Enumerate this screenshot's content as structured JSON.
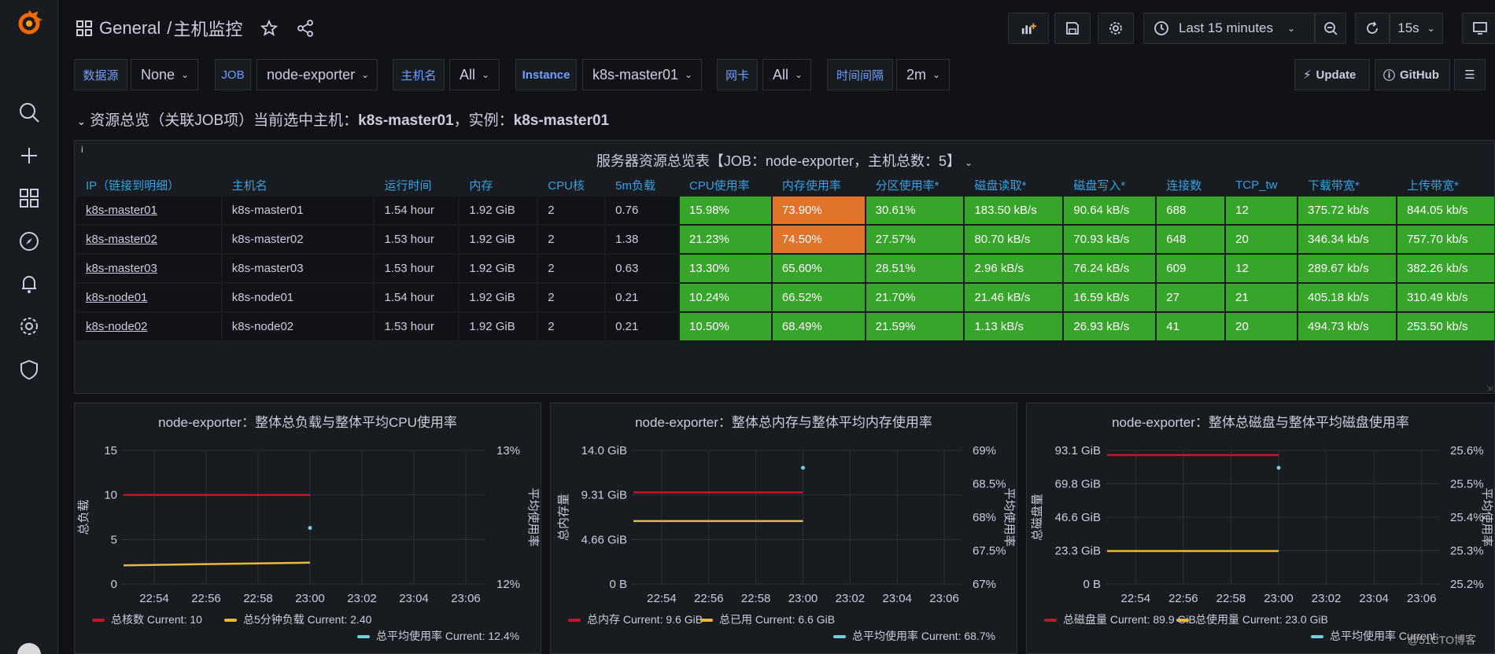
{
  "header": {
    "folder": "General",
    "separator": "/",
    "dashboard": "主机监控"
  },
  "time": {
    "range": "Last 15 minutes",
    "refresh": "15s"
  },
  "vars": [
    {
      "label": "数据源",
      "value": "None"
    },
    {
      "label": "JOB",
      "value": "node-exporter"
    },
    {
      "label": "主机名",
      "value": "All"
    },
    {
      "label": "Instance",
      "value": "k8s-master01"
    },
    {
      "label": "网卡",
      "value": "All"
    },
    {
      "label": "时间间隔",
      "value": "2m"
    }
  ],
  "links": {
    "update": "Update",
    "github": "GitHub"
  },
  "row": {
    "title": "资源总览（关联JOB项）当前选中主机：",
    "host": "k8s-master01",
    "sep": "，实例：",
    "instance": "k8s-master01"
  },
  "table": {
    "title": "服务器资源总览表【JOB：node-exporter，主机总数：5】",
    "info": "i",
    "headers": [
      "IP（链接到明细）",
      "主机名",
      "运行时间",
      "内存",
      "CPU核",
      "5m负载",
      "CPU使用率",
      "内存使用率",
      "分区使用率*",
      "磁盘读取*",
      "磁盘写入*",
      "连接数",
      "TCP_tw",
      "下载带宽*",
      "上传带宽*"
    ],
    "rows": [
      [
        "k8s-master01",
        "k8s-master01",
        "1.54 hour",
        "1.92 GiB",
        "2",
        "0.76",
        "15.98%",
        "73.90%",
        "30.61%",
        "183.50 kB/s",
        "90.64 kB/s",
        "688",
        "12",
        "375.72 kb/s",
        "844.05 kb/s"
      ],
      [
        "k8s-master02",
        "k8s-master02",
        "1.53 hour",
        "1.92 GiB",
        "2",
        "1.38",
        "21.23%",
        "74.50%",
        "27.57%",
        "80.70 kB/s",
        "70.93 kB/s",
        "648",
        "20",
        "346.34 kb/s",
        "757.70 kb/s"
      ],
      [
        "k8s-master03",
        "k8s-master03",
        "1.53 hour",
        "1.92 GiB",
        "2",
        "0.63",
        "13.30%",
        "65.60%",
        "28.51%",
        "2.96 kB/s",
        "76.24 kB/s",
        "609",
        "12",
        "289.67 kb/s",
        "382.26 kb/s"
      ],
      [
        "k8s-node01",
        "k8s-node01",
        "1.54 hour",
        "1.92 GiB",
        "2",
        "0.21",
        "10.24%",
        "66.52%",
        "21.70%",
        "21.46 kB/s",
        "16.59 kB/s",
        "27",
        "21",
        "405.18 kb/s",
        "310.49 kb/s"
      ],
      [
        "k8s-node02",
        "k8s-node02",
        "1.53 hour",
        "1.92 GiB",
        "2",
        "0.21",
        "10.50%",
        "68.49%",
        "21.59%",
        "1.13 kB/s",
        "26.93 kB/s",
        "41",
        "20",
        "494.73 kb/s",
        "253.50 kb/s"
      ]
    ],
    "cell_colors": {
      "green": "#37a52a",
      "orange": "#e0742b"
    },
    "orange_cells": [
      [
        0,
        7
      ],
      [
        1,
        7
      ]
    ]
  },
  "chart_data": [
    {
      "type": "line",
      "title_prefix": "node-exporter：",
      "title": "整体总负载与整体平均CPU使用率",
      "ylabel": "总负载",
      "y2label": "平均使用率",
      "x": [
        "22:54",
        "22:56",
        "22:58",
        "23:00",
        "23:02",
        "23:04",
        "23:06"
      ],
      "y_ticks": [
        "15",
        "10",
        "5",
        "0"
      ],
      "y2_ticks": [
        "13%",
        "12%"
      ],
      "ylim": [
        0,
        15
      ],
      "series": [
        {
          "name": "总核数",
          "color": "#c4162a",
          "x": [
            "22:54",
            "23:00"
          ],
          "values": [
            10,
            10
          ],
          "current": "Current: 10"
        },
        {
          "name": "总5分钟负载",
          "color": "#eab839",
          "x": [
            "22:54",
            "23:00"
          ],
          "values": [
            2.1,
            2.4
          ],
          "current": "Current: 2.40"
        },
        {
          "name": "总平均使用率",
          "color": "#6ed0e0",
          "x": [
            "23:00"
          ],
          "values": [
            12.4
          ],
          "axis": "right",
          "current": "Current: 12.4%"
        }
      ]
    },
    {
      "type": "line",
      "title_prefix": "node-exporter：",
      "title": "整体总内存与整体平均内存使用率",
      "ylabel": "总内存量",
      "y2label": "平均使用率",
      "x": [
        "22:54",
        "22:56",
        "22:58",
        "23:00",
        "23:02",
        "23:04",
        "23:06"
      ],
      "y_ticks": [
        "14.0 GiB",
        "9.31 GiB",
        "4.66 GiB",
        "0 B"
      ],
      "y2_ticks": [
        "69%",
        "68.5%",
        "68%",
        "67.5%",
        "67%"
      ],
      "ylim": [
        0,
        14.0
      ],
      "series": [
        {
          "name": "总内存",
          "color": "#c4162a",
          "x": [
            "22:54",
            "23:00"
          ],
          "values": [
            9.6,
            9.6
          ],
          "current": "Current: 9.6 GiB"
        },
        {
          "name": "总已用",
          "color": "#eab839",
          "x": [
            "22:54",
            "23:00"
          ],
          "values": [
            6.6,
            6.6
          ],
          "current": "Current: 6.6 GiB"
        },
        {
          "name": "总平均使用率",
          "color": "#6ed0e0",
          "x": [
            "23:00"
          ],
          "values": [
            68.7
          ],
          "axis": "right",
          "current": "Current: 68.7%"
        }
      ]
    },
    {
      "type": "line",
      "title_prefix": "node-exporter：",
      "title": "整体总磁盘与整体平均磁盘使用率",
      "ylabel": "总磁盘量",
      "y2label": "平均使用率",
      "x": [
        "22:54",
        "22:56",
        "22:58",
        "23:00",
        "23:02",
        "23:04",
        "23:06"
      ],
      "y_ticks": [
        "93.1 GiB",
        "69.8 GiB",
        "46.6 GiB",
        "23.3 GiB",
        "0 B"
      ],
      "y2_ticks": [
        "25.6%",
        "25.5%",
        "25.4%",
        "25.3%",
        "25.2%"
      ],
      "ylim": [
        0,
        93.1
      ],
      "series": [
        {
          "name": "总磁盘量",
          "color": "#c4162a",
          "x": [
            "22:54",
            "23:00"
          ],
          "values": [
            89.9,
            89.9
          ],
          "current": "Current: 89.9 GiB"
        },
        {
          "name": "总使用量",
          "color": "#eab839",
          "x": [
            "22:54",
            "23:00"
          ],
          "values": [
            23.0,
            23.0
          ],
          "current": "Current: 23.0 GiB"
        },
        {
          "name": "总平均使用率",
          "color": "#6ed0e0",
          "x": [
            "23:00"
          ],
          "values": [
            25.58
          ],
          "axis": "right",
          "current": "Current: "
        }
      ]
    }
  ],
  "watermark": "@51CTO博客"
}
